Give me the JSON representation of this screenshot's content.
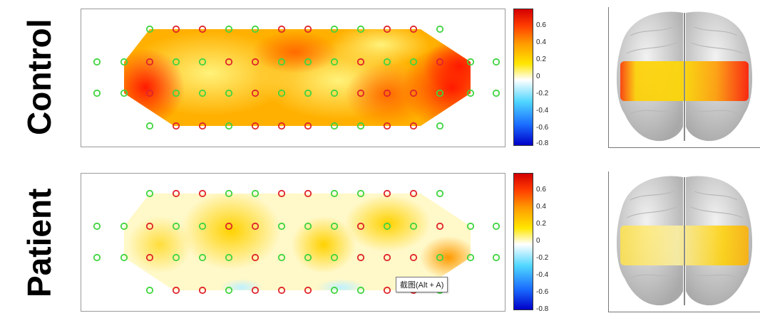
{
  "rows": [
    {
      "label": "Control"
    },
    {
      "label": "Patient"
    }
  ],
  "colorbar": {
    "ticks": [
      "0.6",
      "0.4",
      "0.2",
      "0",
      "-0.2",
      "-0.4",
      "-0.6",
      "-0.8"
    ],
    "colors": [
      "#d40000",
      "#ff3c00",
      "#ff9a00",
      "#ffe600",
      "#ffffff",
      "#4fd6ff",
      "#1a6cff",
      "#0000c8"
    ]
  },
  "tooltip": {
    "text": "截图(Alt + A)"
  },
  "channel_colors": {
    "red": "#e0242a",
    "green": "#3fd43f"
  }
}
